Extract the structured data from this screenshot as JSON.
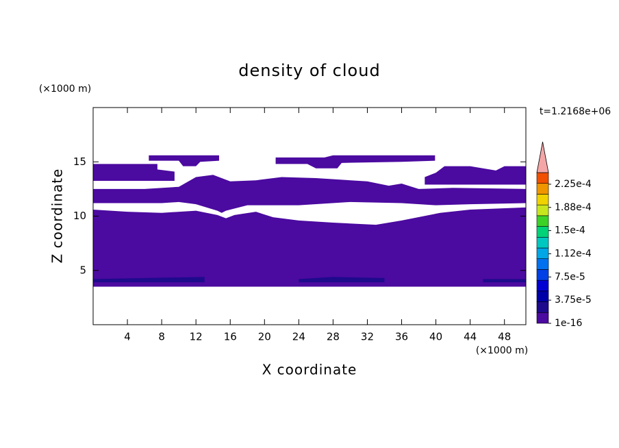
{
  "chart_data": {
    "type": "contour",
    "title": "density of cloud",
    "xlabel": "X coordinate",
    "ylabel": "Z coordinate",
    "xunit": "(×1000 m)",
    "yunit": "(×1000 m)",
    "time_label": "t=1.2168e+06",
    "xlim": [
      0,
      50.5
    ],
    "ylim": [
      0,
      20
    ],
    "xticks": [
      4,
      8,
      12,
      16,
      20,
      24,
      28,
      32,
      36,
      40,
      44,
      48
    ],
    "yticks": [
      5,
      10,
      15
    ],
    "colorbar": {
      "range": [
        0,
        0.00024375
      ],
      "ticks": [
        {
          "value": 1e-16,
          "label": "1e-16"
        },
        {
          "value": 3.75e-05,
          "label": "3.75e-5"
        },
        {
          "value": 7.5e-05,
          "label": "7.5e-5"
        },
        {
          "value": 0.0001125,
          "label": "1.12e-4"
        },
        {
          "value": 0.00015,
          "label": "1.5e-4"
        },
        {
          "value": 0.0001875,
          "label": "1.88e-4"
        },
        {
          "value": 0.000225,
          "label": "2.25e-4"
        }
      ],
      "colors": [
        "#4b0aa0",
        "#1e0a8c",
        "#0000a8",
        "#0000d2",
        "#0040e6",
        "#0072f0",
        "#00a6e6",
        "#00c8c0",
        "#00d278",
        "#3cd228",
        "#c8e61e",
        "#f0d200",
        "#f09600",
        "#f05000"
      ],
      "extend_color": "#f4a6a6"
    },
    "regions": [
      {
        "level": 0,
        "polygon": [
          [
            0,
            3.5
          ],
          [
            50.5,
            3.5
          ],
          [
            50.5,
            10.8
          ],
          [
            44,
            10.6
          ],
          [
            40.5,
            10.3
          ],
          [
            36,
            9.6
          ],
          [
            33,
            9.2
          ],
          [
            28,
            9.4
          ],
          [
            24,
            9.6
          ],
          [
            21,
            9.9
          ],
          [
            19,
            10.4
          ],
          [
            16.5,
            10.1
          ],
          [
            15.5,
            9.8
          ],
          [
            14.5,
            10.1
          ],
          [
            12,
            10.5
          ],
          [
            8,
            10.3
          ],
          [
            4,
            10.4
          ],
          [
            0,
            10.6
          ]
        ]
      },
      {
        "level": 0,
        "polygon": [
          [
            0,
            11.2
          ],
          [
            8,
            11.2
          ],
          [
            10,
            11.3
          ],
          [
            12,
            11.1
          ],
          [
            14.5,
            10.5
          ],
          [
            15,
            10.3
          ],
          [
            15.5,
            10.5
          ],
          [
            18,
            11
          ],
          [
            24,
            11
          ],
          [
            30,
            11.3
          ],
          [
            36,
            11.2
          ],
          [
            40,
            11
          ],
          [
            44,
            11.1
          ],
          [
            50.5,
            11.2
          ],
          [
            50.5,
            12.5
          ],
          [
            42,
            12.6
          ],
          [
            38,
            12.5
          ],
          [
            36,
            13
          ],
          [
            34.5,
            12.8
          ],
          [
            32,
            13.2
          ],
          [
            26,
            13.5
          ],
          [
            22,
            13.6
          ],
          [
            19,
            13.3
          ],
          [
            16,
            13.2
          ],
          [
            14,
            13.8
          ],
          [
            12,
            13.6
          ],
          [
            10,
            12.7
          ],
          [
            6,
            12.5
          ],
          [
            0,
            12.5
          ]
        ]
      },
      {
        "level": 0,
        "polygon": [
          [
            0,
            13.25
          ],
          [
            9.5,
            13.25
          ],
          [
            9.5,
            14.1
          ],
          [
            7.5,
            14.3
          ],
          [
            7.5,
            14.8
          ],
          [
            0,
            14.8
          ]
        ]
      },
      {
        "level": 0,
        "polygon": [
          [
            38.7,
            12.9
          ],
          [
            50.5,
            12.9
          ],
          [
            50.5,
            14.6
          ],
          [
            48,
            14.6
          ],
          [
            47,
            14.2
          ],
          [
            44,
            14.6
          ],
          [
            41,
            14.6
          ],
          [
            40,
            14
          ],
          [
            38.7,
            13.6
          ]
        ]
      },
      {
        "level": 0,
        "polygon": [
          [
            21.3,
            14.8
          ],
          [
            25,
            14.8
          ],
          [
            26,
            14.4
          ],
          [
            28.5,
            14.4
          ],
          [
            29,
            14.9
          ],
          [
            36,
            15
          ],
          [
            39.9,
            15.1
          ],
          [
            39.9,
            15.6
          ],
          [
            28,
            15.6
          ],
          [
            27,
            15.4
          ],
          [
            21.3,
            15.4
          ]
        ]
      },
      {
        "level": 0,
        "polygon": [
          [
            6.5,
            15.1
          ],
          [
            10,
            15.1
          ],
          [
            10.5,
            14.6
          ],
          [
            12,
            14.6
          ],
          [
            12.5,
            15
          ],
          [
            14.7,
            15.1
          ],
          [
            14.7,
            15.6
          ],
          [
            6.5,
            15.6
          ]
        ]
      },
      {
        "level": 1,
        "polygon": [
          [
            0,
            3.9
          ],
          [
            13,
            3.9
          ],
          [
            13,
            4.4
          ],
          [
            6,
            4.3
          ],
          [
            0,
            4.2
          ]
        ]
      },
      {
        "level": 1,
        "polygon": [
          [
            24,
            3.9
          ],
          [
            34,
            3.9
          ],
          [
            34,
            4.3
          ],
          [
            28,
            4.4
          ],
          [
            24,
            4.2
          ]
        ]
      },
      {
        "level": 1,
        "polygon": [
          [
            45.5,
            3.9
          ],
          [
            50.5,
            3.9
          ],
          [
            50.5,
            4.2
          ],
          [
            45.5,
            4.2
          ]
        ]
      }
    ]
  }
}
